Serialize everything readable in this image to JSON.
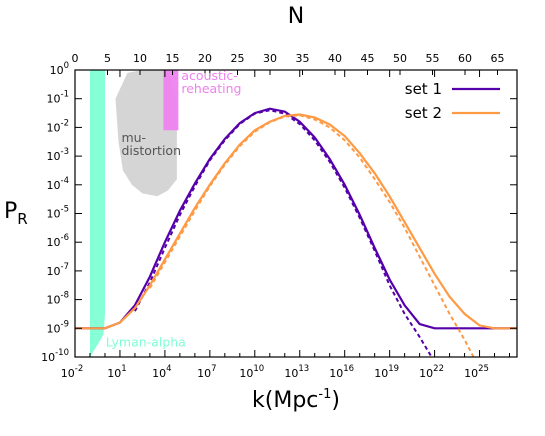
{
  "chart_data": {
    "type": "line",
    "xlabel": "k(Mpc",
    "xlabel_sup": "-1",
    "xlabel_close": ")",
    "ylabel": "P",
    "ylabel_sub": "R",
    "top_axis_label": "N",
    "x_scale": "log",
    "y_scale": "log",
    "xlim_log10": [
      -2,
      27.5
    ],
    "ylim_log10": [
      -10,
      0
    ],
    "top_axis_range": [
      0,
      68
    ],
    "x_ticks": [
      {
        "base": "10",
        "exp": "-2",
        "log": -2
      },
      {
        "base": "10",
        "exp": "1",
        "log": 1
      },
      {
        "base": "10",
        "exp": "4",
        "log": 4
      },
      {
        "base": "10",
        "exp": "7",
        "log": 7
      },
      {
        "base": "10",
        "exp": "10",
        "log": 10
      },
      {
        "base": "10",
        "exp": "13",
        "log": 13
      },
      {
        "base": "10",
        "exp": "16",
        "log": 16
      },
      {
        "base": "10",
        "exp": "19",
        "log": 19
      },
      {
        "base": "10",
        "exp": "22",
        "log": 22
      },
      {
        "base": "10",
        "exp": "25",
        "log": 25
      }
    ],
    "y_ticks": [
      {
        "base": "10",
        "exp": "0",
        "log": 0
      },
      {
        "base": "10",
        "exp": "-1",
        "log": -1
      },
      {
        "base": "10",
        "exp": "-2",
        "log": -2
      },
      {
        "base": "10",
        "exp": "-3",
        "log": -3
      },
      {
        "base": "10",
        "exp": "-4",
        "log": -4
      },
      {
        "base": "10",
        "exp": "-5",
        "log": -5
      },
      {
        "base": "10",
        "exp": "-6",
        "log": -6
      },
      {
        "base": "10",
        "exp": "-7",
        "log": -7
      },
      {
        "base": "10",
        "exp": "-8",
        "log": -8
      },
      {
        "base": "10",
        "exp": "-9",
        "log": -9
      },
      {
        "base": "10",
        "exp": "-10",
        "log": -10
      }
    ],
    "top_ticks": [
      "0",
      "5",
      "10",
      "15",
      "20",
      "25",
      "30",
      "35",
      "40",
      "45",
      "50",
      "55",
      "60",
      "65"
    ],
    "regions": [
      {
        "label": "Lyman-alpha",
        "color": "#7fffd4",
        "polygon": [
          [
            -1,
            -10
          ],
          [
            -1,
            0
          ],
          [
            0,
            0
          ],
          [
            0,
            -8.5
          ],
          [
            -0.1,
            -9.2
          ],
          [
            -0.3,
            -9.4
          ],
          [
            -1,
            -10
          ]
        ]
      },
      {
        "label_lines": [
          "mu-",
          "distortion"
        ],
        "color": "#d3d3d3",
        "label_color": "#555555",
        "polygon": [
          [
            0.7,
            -1
          ],
          [
            1.5,
            -0.1
          ],
          [
            2.5,
            0
          ],
          [
            4.2,
            0
          ],
          [
            4.8,
            -1
          ],
          [
            4.8,
            -3.8
          ],
          [
            4.2,
            -4.2
          ],
          [
            3.5,
            -4.4
          ],
          [
            2.5,
            -4.3
          ],
          [
            1.8,
            -4.0
          ],
          [
            1.2,
            -3.5
          ],
          [
            0.9,
            -2.5
          ],
          [
            0.7,
            -1
          ]
        ]
      },
      {
        "label_lines": [
          "acoustic-",
          "reheating"
        ],
        "color": "#ee82ee",
        "polygon": [
          [
            3.9,
            -2.1
          ],
          [
            3.9,
            0
          ],
          [
            4.9,
            0
          ],
          [
            4.9,
            -2.1
          ]
        ]
      }
    ],
    "series": [
      {
        "name": "set 1",
        "color": "#5500aa",
        "solid": [
          [
            -2,
            -9
          ],
          [
            -1,
            -9
          ],
          [
            0,
            -9
          ],
          [
            1,
            -8.8
          ],
          [
            2,
            -8.2
          ],
          [
            3,
            -7.2
          ],
          [
            4,
            -6.0
          ],
          [
            5,
            -4.9
          ],
          [
            6,
            -3.95
          ],
          [
            7,
            -3.1
          ],
          [
            8,
            -2.4
          ],
          [
            9,
            -1.85
          ],
          [
            10,
            -1.5
          ],
          [
            11,
            -1.35
          ],
          [
            12,
            -1.45
          ],
          [
            13,
            -1.8
          ],
          [
            14,
            -2.35
          ],
          [
            15,
            -3.1
          ],
          [
            16,
            -4.0
          ],
          [
            17,
            -5.05
          ],
          [
            18,
            -6.2
          ],
          [
            19,
            -7.3
          ],
          [
            20,
            -8.2
          ],
          [
            21,
            -8.85
          ],
          [
            22,
            -9
          ],
          [
            27.5,
            -9
          ]
        ],
        "dashed": [
          [
            2,
            -8.4
          ],
          [
            3,
            -7.4
          ],
          [
            4,
            -6.2
          ],
          [
            5,
            -5.05
          ],
          [
            6,
            -4.05
          ],
          [
            7,
            -3.15
          ],
          [
            8,
            -2.45
          ],
          [
            9,
            -1.88
          ],
          [
            10,
            -1.52
          ],
          [
            11,
            -1.4
          ],
          [
            12,
            -1.52
          ],
          [
            13,
            -1.88
          ],
          [
            14,
            -2.45
          ],
          [
            15,
            -3.2
          ],
          [
            16,
            -4.1
          ],
          [
            17,
            -5.15
          ],
          [
            18,
            -6.3
          ],
          [
            19,
            -7.5
          ],
          [
            20,
            -8.5
          ],
          [
            21,
            -9.3
          ],
          [
            21.8,
            -10
          ]
        ]
      },
      {
        "name": "set 2",
        "color": "#ff9a44",
        "solid": [
          [
            -2,
            -9
          ],
          [
            -1,
            -9
          ],
          [
            0,
            -9
          ],
          [
            1,
            -8.8
          ],
          [
            2,
            -8.3
          ],
          [
            3,
            -7.5
          ],
          [
            4,
            -6.6
          ],
          [
            5,
            -5.7
          ],
          [
            6,
            -4.8
          ],
          [
            7,
            -4.0
          ],
          [
            8,
            -3.25
          ],
          [
            9,
            -2.6
          ],
          [
            10,
            -2.1
          ],
          [
            11,
            -1.8
          ],
          [
            12,
            -1.6
          ],
          [
            13,
            -1.55
          ],
          [
            14,
            -1.65
          ],
          [
            15,
            -1.9
          ],
          [
            16,
            -2.3
          ],
          [
            17,
            -2.9
          ],
          [
            18,
            -3.6
          ],
          [
            19,
            -4.4
          ],
          [
            20,
            -5.3
          ],
          [
            21,
            -6.2
          ],
          [
            22,
            -7.1
          ],
          [
            23,
            -7.9
          ],
          [
            24,
            -8.5
          ],
          [
            25,
            -8.9
          ],
          [
            26,
            -9
          ],
          [
            27.5,
            -9
          ]
        ],
        "dashed": [
          [
            3,
            -7.6
          ],
          [
            4,
            -6.7
          ],
          [
            5,
            -5.8
          ],
          [
            6,
            -4.9
          ],
          [
            7,
            -4.05
          ],
          [
            8,
            -3.3
          ],
          [
            9,
            -2.65
          ],
          [
            10,
            -2.15
          ],
          [
            11,
            -1.82
          ],
          [
            12,
            -1.62
          ],
          [
            13,
            -1.58
          ],
          [
            14,
            -1.72
          ],
          [
            15,
            -2.0
          ],
          [
            16,
            -2.45
          ],
          [
            17,
            -3.05
          ],
          [
            18,
            -3.8
          ],
          [
            19,
            -4.6
          ],
          [
            20,
            -5.5
          ],
          [
            21,
            -6.5
          ],
          [
            22,
            -7.5
          ],
          [
            23,
            -8.5
          ],
          [
            24,
            -9.4
          ],
          [
            24.6,
            -10
          ]
        ]
      }
    ],
    "legend_position": "top-right",
    "grid": false
  }
}
